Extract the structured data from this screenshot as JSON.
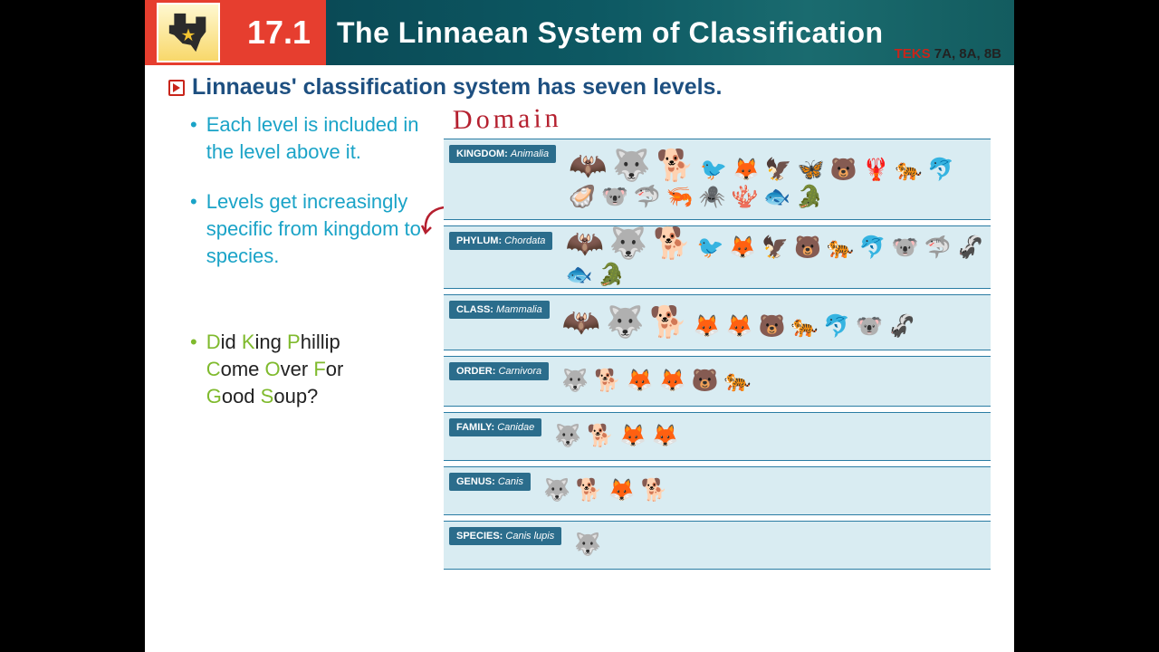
{
  "header": {
    "section_number": "17.1",
    "title": "The Linnaean System of Classification",
    "teks_label": "TEKS",
    "teks_codes": "7A, 8A, 8B"
  },
  "heading": "Linnaeus' classification system has seven levels.",
  "bullets": {
    "b1": "Each level is included in the level above it.",
    "b2": "Levels get increasingly specific from kingdom to species."
  },
  "mnemonic": {
    "words": [
      "Did ",
      "King ",
      "Phillip ",
      "Come ",
      "Over ",
      "For ",
      "Good ",
      "Soup?"
    ],
    "d": "D",
    "k": "K",
    "p": "P",
    "c": "C",
    "o": "O",
    "f": "F",
    "g": "G",
    "s": "S",
    "rest_d": "id ",
    "rest_k": "ing ",
    "rest_p": "hillip ",
    "rest_c": "ome ",
    "rest_o": "ver ",
    "rest_f": "or ",
    "rest_g": "ood ",
    "rest_s": "oup?"
  },
  "handwritten": "Domain",
  "levels": [
    {
      "rank": "KINGDOM",
      "value": "Animalia",
      "cls": "k",
      "animals": [
        "🦇",
        "🐺",
        "🐕",
        "🐦",
        "🦊",
        "🦅",
        "🦋",
        "🐻",
        "🦞",
        "🐅",
        "🐬",
        "🦪",
        "🐨",
        "🦈",
        "🦐",
        "🕷️",
        "🪸",
        "🐟",
        "🐊"
      ]
    },
    {
      "rank": "PHYLUM",
      "value": "Chordata",
      "cls": "p",
      "animals": [
        "🦇",
        "🐺",
        "🐕",
        "🐦",
        "🦊",
        "🦅",
        "🐻",
        "🐅",
        "🐬",
        "🐨",
        "🦈",
        "🦨",
        "🐟",
        "🐊"
      ]
    },
    {
      "rank": "CLASS",
      "value": "Mammalia",
      "cls": "c",
      "animals": [
        "🦇",
        "🐺",
        "🐕",
        "🦊",
        "🦊",
        "🐻",
        "🐅",
        "🐬",
        "🐨",
        "🦨"
      ]
    },
    {
      "rank": "ORDER",
      "value": "Carnivora",
      "cls": "o",
      "animals": [
        "🐺",
        "🐕",
        "🦊",
        "🦊",
        "🐻",
        "🐅"
      ]
    },
    {
      "rank": "FAMILY",
      "value": "Canidae",
      "cls": "f",
      "animals": [
        "🐺",
        "🐕",
        "🦊",
        "🦊"
      ]
    },
    {
      "rank": "GENUS",
      "value": "Canis",
      "cls": "g",
      "animals": [
        "🐺",
        "🐕",
        "🦊",
        "🐕"
      ]
    },
    {
      "rank": "SPECIES",
      "value": "Canis lupis",
      "cls": "s",
      "animals": [
        "🐺"
      ]
    }
  ],
  "colors": {
    "accent_red": "#e63e2f",
    "header_teal": "#0d5963",
    "heading_blue": "#1d4f80",
    "bullet_cyan": "#1aa3c7",
    "mnemonic_green": "#7fba2d",
    "level_bg": "#d9ecf2",
    "level_label_bg": "#2b6d8c",
    "level_border": "#2a7ca3",
    "handwrite": "#b5202f"
  }
}
